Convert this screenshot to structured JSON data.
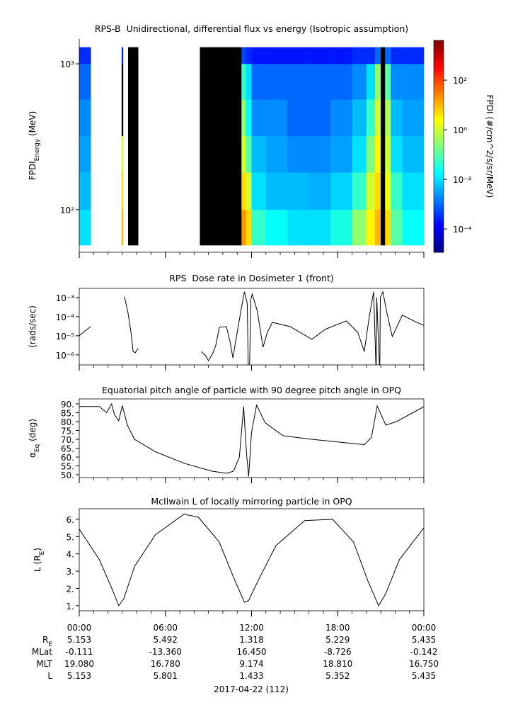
{
  "time_axis": {
    "xlim": [
      0,
      24
    ],
    "xticks": [
      {
        "value": 0,
        "label": "00:00"
      },
      {
        "value": 6,
        "label": "06:00"
      },
      {
        "value": 12,
        "label": "12:00"
      },
      {
        "value": 18,
        "label": "18:00"
      },
      {
        "value": 24,
        "label": "00:00"
      }
    ],
    "minor_step": 1,
    "date": "2017-04-22 (112)"
  },
  "ephemeris": [
    {
      "label": [
        {
          "text": "R"
        },
        {
          "sub": "E"
        }
      ],
      "values": [
        "5.153",
        "5.492",
        "1.318",
        "5.229",
        "5.435"
      ]
    },
    {
      "label": [
        {
          "text": "MLat"
        }
      ],
      "values": [
        "-0.111",
        "-13.360",
        "16.450",
        "-8.726",
        "-0.142"
      ]
    },
    {
      "label": [
        {
          "text": "MLT"
        }
      ],
      "values": [
        "19.080",
        "16.780",
        "9.174",
        "18.810",
        "16.750"
      ]
    },
    {
      "label": [
        {
          "text": "L"
        }
      ],
      "values": [
        "5.153",
        "5.801",
        "1.433",
        "5.352",
        "5.435"
      ]
    }
  ],
  "chart_data": [
    {
      "type": "heatmap",
      "title": "RPS-B  Unidirectional, differential flux vs energy (Isotropic assumption)",
      "ylabel": [
        {
          "text": "FPDI"
        },
        {
          "sub": "Energy"
        },
        {
          "text": " (MeV)"
        }
      ],
      "ylog": true,
      "ylim": [
        51,
        1480
      ],
      "yticks": [
        {
          "value": 100,
          "label": "10²"
        },
        {
          "value": 1000,
          "label": "10³"
        }
      ],
      "x_edges": [
        0,
        0.8,
        2.95,
        3.05,
        3.4,
        4.1,
        8.4,
        11.3,
        11.6,
        12.0,
        13.0,
        14.5,
        16.0,
        17.5,
        19.0,
        20.0,
        20.6,
        21.0,
        21.3,
        21.7,
        22.5,
        24
      ],
      "y_edges": [
        57,
        100,
        180,
        320,
        570,
        1000,
        1300
      ],
      "z": [
        [
          0.01,
          0.005,
          0.003,
          0.002,
          0.001,
          0.0003
        ],
        [
          null,
          null,
          null,
          null,
          null,
          null
        ],
        [
          10,
          5,
          1,
          0,
          0,
          0.0003
        ],
        [
          null,
          null,
          null,
          null,
          null,
          null
        ],
        [
          0,
          0,
          0,
          0,
          0,
          0
        ],
        [
          null,
          null,
          null,
          null,
          null,
          null
        ],
        [
          0,
          0,
          0,
          0,
          0,
          0
        ],
        [
          20,
          5,
          1,
          0.3,
          0.05,
          0.0005
        ],
        [
          5,
          1,
          0.1,
          0.02,
          0.01,
          0.0003
        ],
        [
          0.05,
          0.01,
          0.005,
          0.002,
          0.001,
          0.0002
        ],
        [
          0.02,
          0.005,
          0.003,
          0.002,
          0.001,
          0.0002
        ],
        [
          0.01,
          0.005,
          0.002,
          0.001,
          0.001,
          0.0002
        ],
        [
          0.01,
          0.004,
          0.002,
          0.001,
          0.001,
          0.0002
        ],
        [
          0.03,
          0.008,
          0.003,
          0.002,
          0.001,
          0.0002
        ],
        [
          0.3,
          0.05,
          0.01,
          0.005,
          0.002,
          0.0003
        ],
        [
          3,
          1,
          0.2,
          0.05,
          0.01,
          0.0003
        ],
        [
          10,
          5,
          3,
          1,
          0.3,
          0.001
        ],
        [
          0,
          0,
          0,
          0,
          0,
          0
        ],
        [
          5,
          2,
          1,
          0.5,
          0.1,
          0.001
        ],
        [
          0.1,
          0.05,
          0.01,
          0.005,
          0.002,
          0.0003
        ],
        [
          0.02,
          0.01,
          0.005,
          0.003,
          0.002,
          0.0003
        ]
      ],
      "zlog": true,
      "zlim": [
        1.15e-05,
        4000
      ],
      "zticks": [
        {
          "value": 0.0001,
          "label": "10⁻⁴"
        },
        {
          "value": 0.01,
          "label": "10⁻²"
        },
        {
          "value": 1,
          "label": "10⁰"
        },
        {
          "value": 100,
          "label": "10²"
        }
      ],
      "zlabel": "FPDI (#/cm^2/s/sr/MeV)",
      "colormap": "jet",
      "below_color": "#000000"
    },
    {
      "type": "line",
      "title": "RPS  Dose rate in Dosimeter 1 (front)",
      "ylabel": [
        {
          "text": "(rads/sec)"
        }
      ],
      "ylog": true,
      "ylim": [
        3e-07,
        0.003
      ],
      "yticks": [
        {
          "value": 1e-06,
          "label": "10⁻⁶"
        },
        {
          "value": 1e-05,
          "label": "10⁻⁵"
        },
        {
          "value": 0.0001,
          "label": "10⁻⁴"
        },
        {
          "value": 0.001,
          "label": "10⁻³"
        }
      ],
      "color": "#000000",
      "x": [
        0,
        0.4,
        0.8,
        1.9,
        3.15,
        3.4,
        3.6,
        3.75,
        3.9,
        4.1,
        6.0,
        8.5,
        8.8,
        9.0,
        9.3,
        9.5,
        9.76,
        10.25,
        10.5,
        10.7,
        11.0,
        11.3,
        11.5,
        11.7,
        11.78,
        11.85,
        11.95,
        12.05,
        12.4,
        12.8,
        13.1,
        13.45,
        14.7,
        16.2,
        17.15,
        18.6,
        19.4,
        19.85,
        20.2,
        20.5,
        20.68,
        20.72,
        20.93,
        20.97,
        21.15,
        21.4,
        21.8,
        22.5,
        23.3,
        24
      ],
      "values": [
        1e-05,
        1.8e-05,
        3e-05,
        null,
        0.0011,
        0.00015,
        1.5e-05,
        1.5e-06,
        1.3e-06,
        2.2e-06,
        null,
        1.5e-06,
        9e-07,
        5e-07,
        1.2e-06,
        3e-06,
        2.8e-05,
        3e-05,
        5e-06,
        7e-07,
        1.5e-05,
        0.0003,
        0.002,
        0.0005,
        1e-07,
        1e-07,
        0.0008,
        0.0015,
        0.0002,
        2.5e-06,
        1.5e-05,
        5e-05,
        3e-05,
        6.5e-06,
        2.2e-05,
        6e-05,
        1.5e-05,
        1.5e-06,
        0.0001,
        0.002,
        1e-07,
        0.001,
        1e-07,
        0.001,
        0.002,
        0.0002,
        9e-06,
        0.00012,
        6e-05,
        3.5e-05
      ]
    },
    {
      "type": "line",
      "title": "Equatorial pitch angle of particle with 90 degree pitch angle in OPQ",
      "ylabel": [
        {
          "text": "α"
        },
        {
          "sub": "Eq"
        },
        {
          "text": " (deg)"
        }
      ],
      "ylog": false,
      "ylim": [
        48.4,
        92.8
      ],
      "yticks": [
        {
          "value": 50,
          "label": "50."
        },
        {
          "value": 55,
          "label": "55."
        },
        {
          "value": 60,
          "label": "60."
        },
        {
          "value": 65,
          "label": "65."
        },
        {
          "value": 70,
          "label": "70."
        },
        {
          "value": 75,
          "label": "75."
        },
        {
          "value": 80,
          "label": "80."
        },
        {
          "value": 85,
          "label": "85."
        },
        {
          "value": 90,
          "label": "90."
        }
      ],
      "color": "#000000",
      "x": [
        0,
        1.4,
        1.9,
        2.25,
        2.45,
        2.75,
        3.0,
        3.35,
        3.85,
        5.3,
        7.3,
        9.25,
        10.25,
        10.75,
        11.15,
        11.45,
        11.65,
        11.8,
        12.0,
        12.35,
        12.95,
        14.2,
        16.2,
        18.6,
        19.85,
        20.35,
        20.75,
        21.35,
        22.1,
        24
      ],
      "values": [
        88.5,
        88.5,
        85,
        90,
        84,
        80.5,
        89,
        78,
        70,
        63,
        56.5,
        52,
        50.8,
        52,
        60,
        88.5,
        62,
        49,
        74,
        89.3,
        79.3,
        72,
        70,
        68,
        67,
        71,
        88.8,
        78,
        80,
        88.4
      ]
    },
    {
      "type": "line",
      "title": "McIlwain L of locally mirroring particle in OPQ",
      "ylabel": [
        {
          "text": "L (R"
        },
        {
          "sub": "E"
        },
        {
          "text": ")"
        }
      ],
      "ylog": false,
      "ylim": [
        0.71,
        6.61
      ],
      "yticks": [
        {
          "value": 1,
          "label": "1."
        },
        {
          "value": 2,
          "label": "2."
        },
        {
          "value": 3,
          "label": "3."
        },
        {
          "value": 4,
          "label": "4."
        },
        {
          "value": 5,
          "label": "5."
        },
        {
          "value": 6,
          "label": "6."
        }
      ],
      "color": "#000000",
      "x": [
        0,
        1.4,
        2.35,
        2.75,
        3.1,
        3.85,
        5.3,
        7.3,
        8.3,
        9.75,
        10.75,
        11.5,
        11.8,
        12.45,
        13.7,
        15.7,
        17.65,
        19.1,
        20.1,
        20.85,
        21.35,
        22.3,
        24
      ],
      "values": [
        5.43,
        3.67,
        1.84,
        1.0,
        1.4,
        3.27,
        5.1,
        6.3,
        6.12,
        4.69,
        2.64,
        1.2,
        1.3,
        2.44,
        4.48,
        5.92,
        6.0,
        4.69,
        2.44,
        1.0,
        1.7,
        3.67,
        5.5
      ]
    }
  ]
}
